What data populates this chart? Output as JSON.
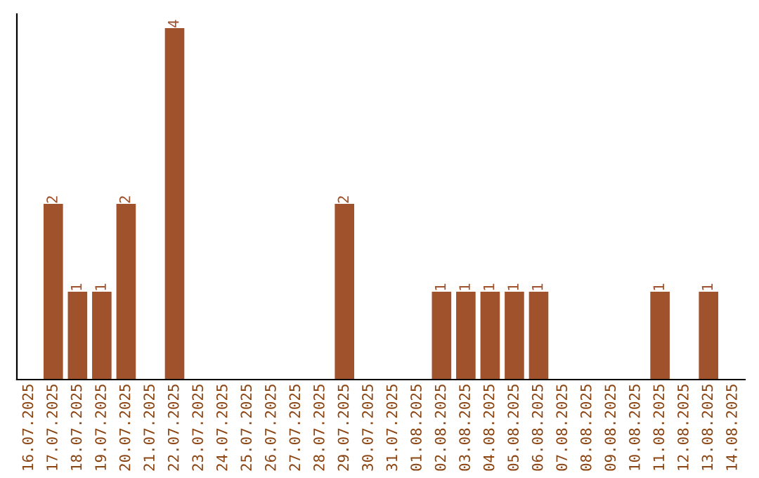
{
  "chart_data": {
    "type": "bar",
    "categories": [
      "16.07.2025",
      "17.07.2025",
      "18.07.2025",
      "19.07.2025",
      "20.07.2025",
      "21.07.2025",
      "22.07.2025",
      "23.07.2025",
      "24.07.2025",
      "25.07.2025",
      "26.07.2025",
      "27.07.2025",
      "28.07.2025",
      "29.07.2025",
      "30.07.2025",
      "31.07.2025",
      "01.08.2025",
      "02.08.2025",
      "03.08.2025",
      "04.08.2025",
      "05.08.2025",
      "06.08.2025",
      "07.08.2025",
      "08.08.2025",
      "09.08.2025",
      "10.08.2025",
      "11.08.2025",
      "12.08.2025",
      "13.08.2025",
      "14.08.2025"
    ],
    "values": [
      0,
      2,
      1,
      1,
      2,
      0,
      4,
      0,
      0,
      0,
      0,
      0,
      0,
      2,
      0,
      0,
      0,
      1,
      1,
      1,
      1,
      1,
      0,
      0,
      0,
      0,
      1,
      0,
      1,
      0
    ],
    "value_labels": [
      null,
      "2",
      "1",
      "1",
      "2",
      null,
      "4",
      null,
      null,
      null,
      null,
      null,
      null,
      "2",
      null,
      null,
      null,
      "1",
      "1",
      "1",
      "1",
      "1",
      null,
      null,
      null,
      null,
      "1",
      null,
      "1",
      null
    ],
    "color": "#a0522d",
    "grid": false,
    "legend": false,
    "tick_labels": "x"
  }
}
